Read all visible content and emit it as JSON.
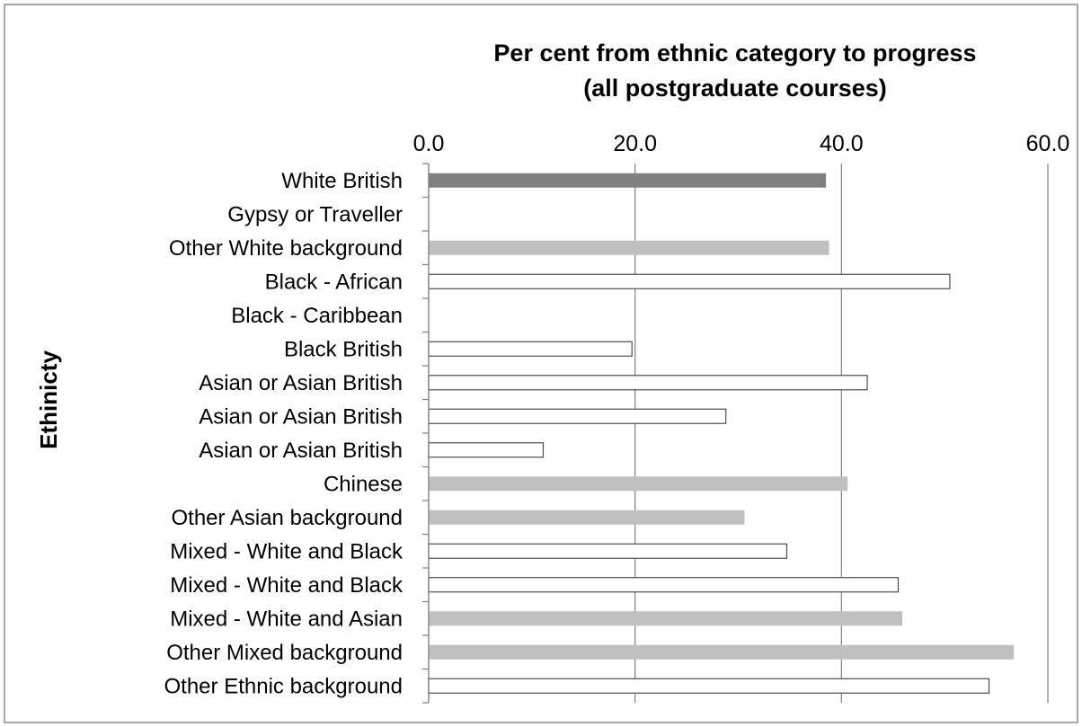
{
  "chart_data": {
    "type": "bar",
    "orientation": "horizontal",
    "title": "Per cent from ethnic category to progress\n(all postgraduate courses)",
    "title_lines": [
      "Per cent from ethnic category to progress",
      "(all postgraduate courses)"
    ],
    "xlabel": "",
    "ylabel": "Ethinicty",
    "xlim": [
      0,
      60
    ],
    "x_ticks": [
      "0.0",
      "20.0",
      "40.0",
      "60.0"
    ],
    "x_tick_values": [
      0,
      20,
      40,
      60
    ],
    "x_axis_position": "top",
    "grid": true,
    "categories": [
      "White British",
      "Gypsy or Traveller",
      "Other White background",
      "Black - African",
      "Black - Caribbean",
      "Black British",
      "Asian or Asian British",
      "Asian or Asian British",
      "Asian or Asian British",
      "Chinese",
      "Other Asian background",
      "Mixed - White and Black",
      "Mixed - White and Black",
      "Mixed - White and Asian",
      "Other Mixed background",
      "Other Ethnic background"
    ],
    "values": [
      38.5,
      0,
      38.8,
      50.5,
      0,
      19.7,
      42.5,
      28.8,
      11.1,
      40.6,
      30.6,
      34.7,
      45.5,
      45.9,
      56.7,
      54.3
    ],
    "bar_colors": [
      "#808080",
      "#ffffff",
      "#c0c0c0",
      "#ffffff",
      "#ffffff",
      "#ffffff",
      "#ffffff",
      "#ffffff",
      "#ffffff",
      "#c0c0c0",
      "#c0c0c0",
      "#ffffff",
      "#ffffff",
      "#c0c0c0",
      "#c0c0c0",
      "#ffffff"
    ],
    "bar_outlined": [
      false,
      false,
      false,
      true,
      false,
      true,
      true,
      true,
      true,
      false,
      false,
      true,
      true,
      false,
      false,
      true
    ]
  }
}
